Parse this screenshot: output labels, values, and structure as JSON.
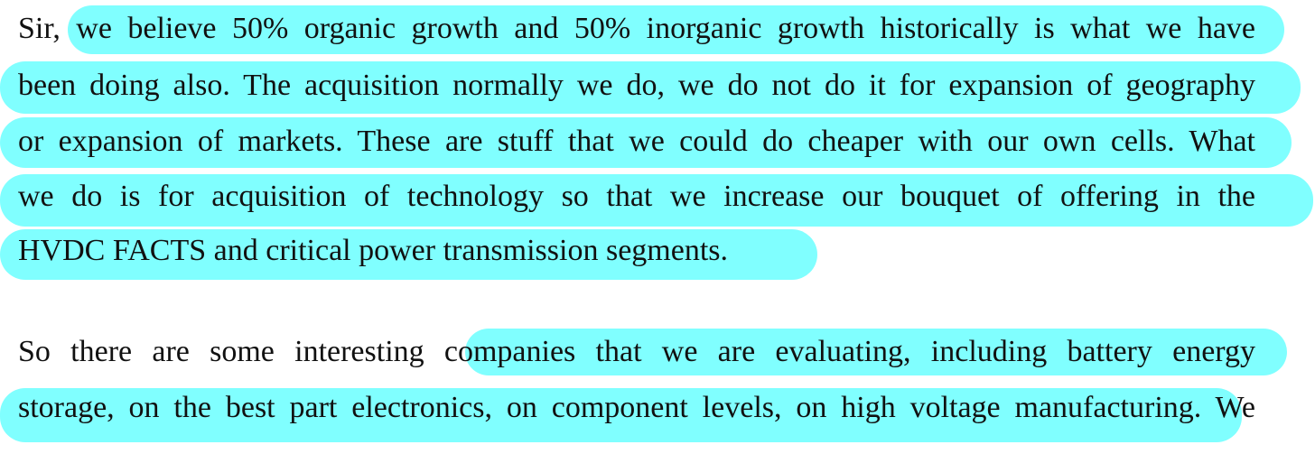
{
  "paragraphs": [
    {
      "lines": [
        "Sir, we believe 50% organic growth and 50% inorganic growth historically is what we have",
        "been doing also. The acquisition normally we do, we do not do it for expansion of geography",
        "or expansion of markets. These are stuff that we could do cheaper with our own cells. What",
        "we do is for acquisition of technology so that we increase our bouquet of offering in the",
        "HVDC FACTS and critical power transmission segments."
      ]
    },
    {
      "lines": [
        "So there are some interesting companies that we are evaluating, including battery energy",
        "storage, on the best part electronics, on component levels, on high voltage manufacturing. We"
      ]
    }
  ]
}
